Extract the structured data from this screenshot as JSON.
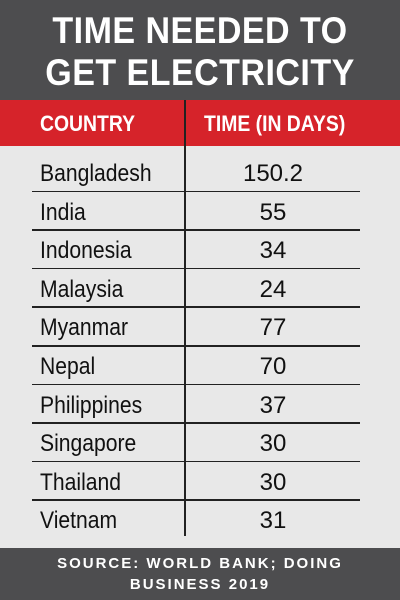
{
  "header": {
    "title": [
      "TIME NEEDED TO",
      "GET ELECTRICITY"
    ]
  },
  "table": {
    "columns": [
      "COUNTRY",
      "TIME (IN DAYS)"
    ],
    "rows": [
      [
        "Bangladesh",
        150.2
      ],
      [
        "India",
        55
      ],
      [
        "Indonesia",
        34
      ],
      [
        "Malaysia",
        24
      ],
      [
        "Myanmar",
        77
      ],
      [
        "Nepal",
        70
      ],
      [
        "Philippines",
        37
      ],
      [
        "Singapore",
        30
      ],
      [
        "Thailand",
        30
      ],
      [
        "Vietnam",
        31
      ]
    ]
  },
  "footer": {
    "source": [
      "SOURCE: WORLD BANK; DOING",
      "BUSINESS 2019"
    ]
  }
}
